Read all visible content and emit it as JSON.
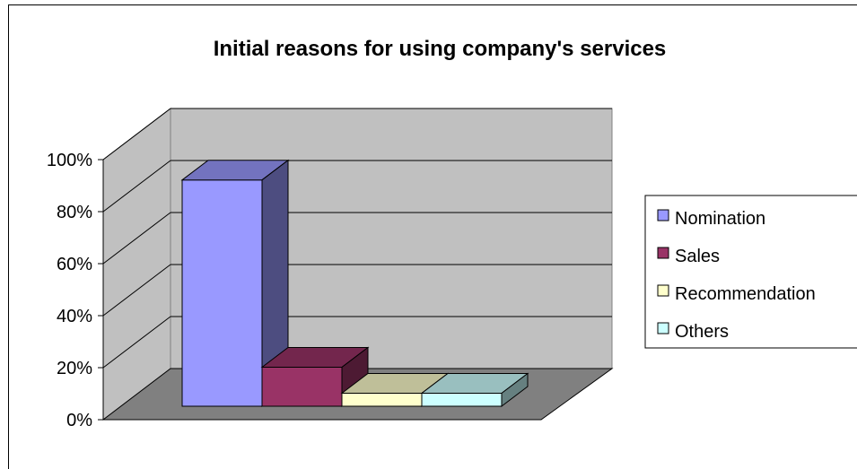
{
  "chart_data": {
    "type": "bar",
    "title": "Initial reasons for using company's services",
    "xlabel": "",
    "ylabel": "",
    "ylim": [
      0,
      100
    ],
    "yticks": [
      "0%",
      "20%",
      "40%",
      "60%",
      "80%",
      "100%"
    ],
    "grid": true,
    "legend_position": "right",
    "series": [
      {
        "name": "Nomination",
        "value": 87,
        "color": "#9999ff"
      },
      {
        "name": "Sales",
        "value": 15,
        "color": "#993366"
      },
      {
        "name": "Recommendation",
        "value": 5,
        "color": "#ffffcc"
      },
      {
        "name": "Others",
        "value": 5,
        "color": "#ccffff"
      }
    ],
    "colors": {
      "wall": "#c0c0c0",
      "floor": "#808080",
      "grid": "#000000"
    }
  }
}
